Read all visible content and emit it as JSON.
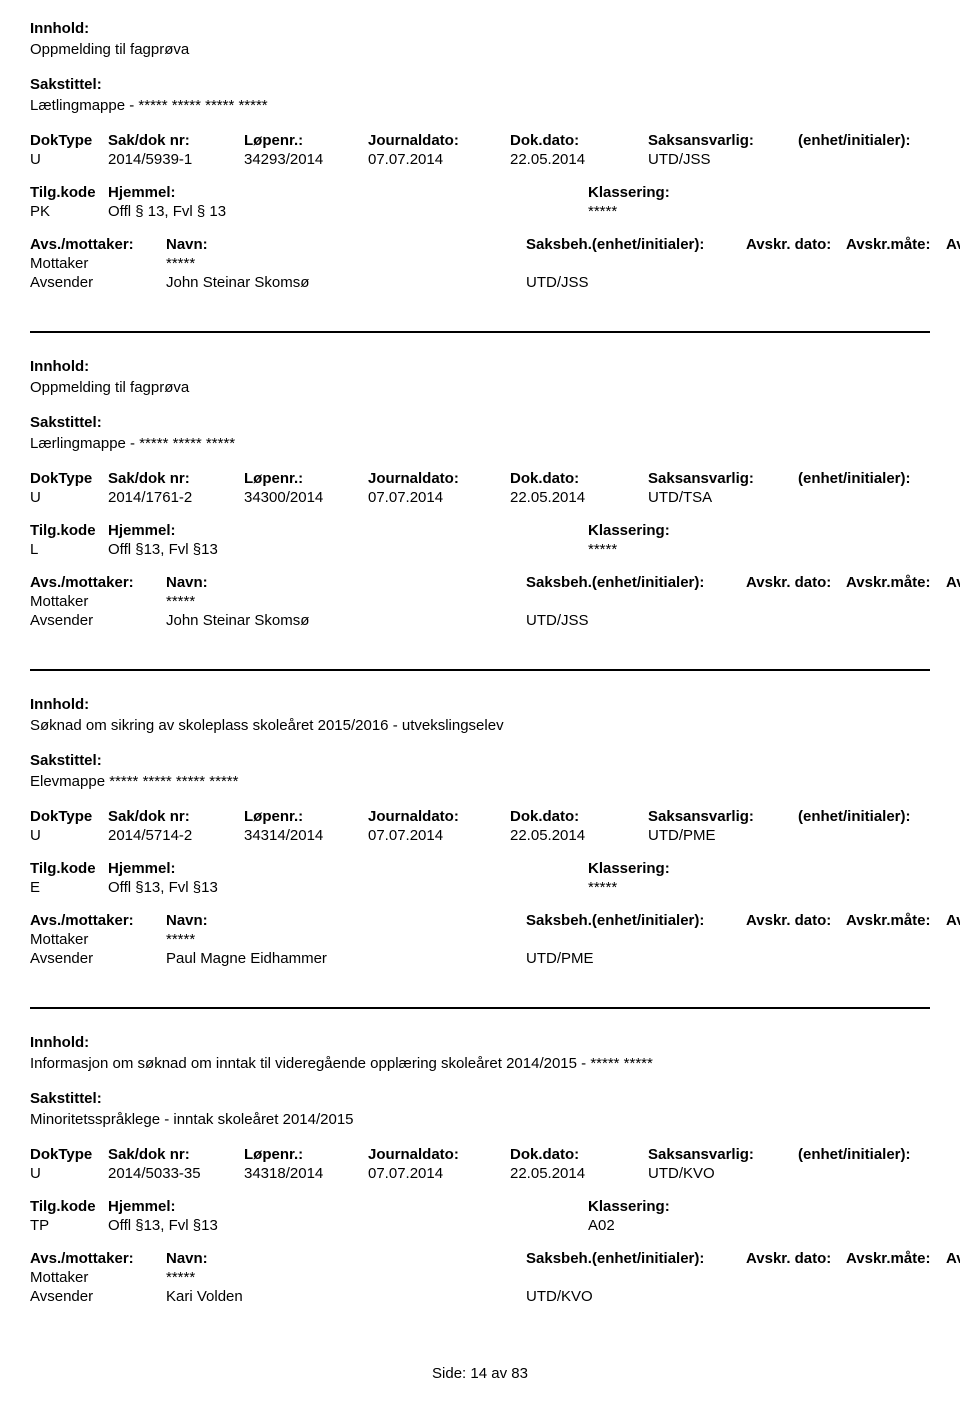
{
  "labels": {
    "innhold": "Innhold:",
    "sakstittel": "Sakstittel:",
    "doktype": "DokType",
    "saknr": "Sak/dok nr:",
    "lopenr": "Løpenr.:",
    "journaldato": "Journaldato:",
    "dokdato": "Dok.dato:",
    "saksansvarlig": "Saksansvarlig:",
    "enhet": "(enhet/initialer):",
    "tilgkode": "Tilg.kode",
    "hjemmel": "Hjemmel:",
    "klassering": "Klassering:",
    "avsmottaker": "Avs./mottaker:",
    "navn": "Navn:",
    "saksbeh": "Saksbeh.(enhet/initialer):",
    "avskrdato": "Avskr. dato:",
    "avskrmate": "Avskr.måte:",
    "avskrlnr": "Avskriv lnr.:",
    "mottaker": "Mottaker",
    "avsender": "Avsender"
  },
  "records": [
    {
      "innhold": "Oppmelding til fagprøva",
      "sakstittel": "Lætlingmappe - ***** ***** ***** *****",
      "doktype": "U",
      "saknr": "2014/5939-1",
      "lopenr": "34293/2014",
      "journaldato": "07.07.2014",
      "dokdato": "22.05.2014",
      "saksansvarlig": "UTD/JSS",
      "enhet": "",
      "tilgkode": "PK",
      "hjemmel": "Offl § 13, Fvl § 13",
      "klassering": "*****",
      "mottaker_navn": "*****",
      "avsender_navn": "John Steinar Skomsø",
      "avsender_unit": "UTD/JSS"
    },
    {
      "innhold": "Oppmelding til fagprøva",
      "sakstittel": "Lærlingmappe - ***** ***** *****",
      "doktype": "U",
      "saknr": "2014/1761-2",
      "lopenr": "34300/2014",
      "journaldato": "07.07.2014",
      "dokdato": "22.05.2014",
      "saksansvarlig": "UTD/TSA",
      "enhet": "",
      "tilgkode": "L",
      "hjemmel": "Offl §13, Fvl §13",
      "klassering": "*****",
      "mottaker_navn": "*****",
      "avsender_navn": "John Steinar Skomsø",
      "avsender_unit": "UTD/JSS"
    },
    {
      "innhold": "Søknad om sikring av skoleplass skoleåret 2015/2016 - utvekslingselev",
      "sakstittel": "Elevmappe ***** ***** ***** *****",
      "doktype": "U",
      "saknr": "2014/5714-2",
      "lopenr": "34314/2014",
      "journaldato": "07.07.2014",
      "dokdato": "22.05.2014",
      "saksansvarlig": "UTD/PME",
      "enhet": "",
      "tilgkode": "E",
      "hjemmel": "Offl §13, Fvl §13",
      "klassering": "*****",
      "mottaker_navn": "*****",
      "avsender_navn": "Paul Magne Eidhammer",
      "avsender_unit": "UTD/PME"
    },
    {
      "innhold": "Informasjon om søknad om inntak til videregående opplæring skoleåret 2014/2015 - ***** *****",
      "sakstittel": "Minoritetsspråklege - inntak skoleåret 2014/2015",
      "doktype": "U",
      "saknr": "2014/5033-35",
      "lopenr": "34318/2014",
      "journaldato": "07.07.2014",
      "dokdato": "22.05.2014",
      "saksansvarlig": "UTD/KVO",
      "enhet": "",
      "tilgkode": "TP",
      "hjemmel": "Offl §13, Fvl §13",
      "klassering": "A02",
      "mottaker_navn": "*****",
      "avsender_navn": "Kari Volden",
      "avsender_unit": "UTD/KVO"
    }
  ],
  "footer": {
    "side_label": "Side:",
    "page": "14",
    "av": "av",
    "total": "83"
  }
}
